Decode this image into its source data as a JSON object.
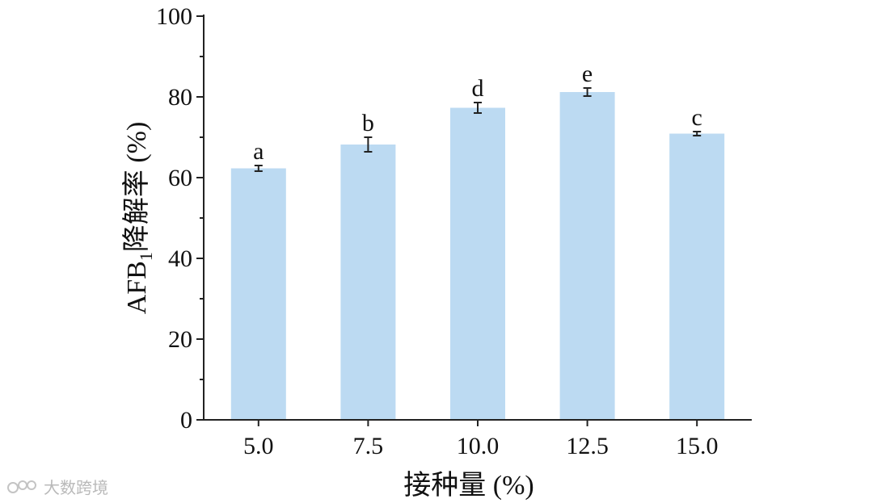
{
  "chart_data": {
    "type": "bar",
    "categories": [
      "5.0",
      "7.5",
      "10.0",
      "12.5",
      "15.0"
    ],
    "values": [
      62.3,
      68.2,
      77.3,
      81.2,
      70.9
    ],
    "errors": [
      0.7,
      1.8,
      1.3,
      1.0,
      0.5
    ],
    "significance": [
      "a",
      "b",
      "d",
      "e",
      "c"
    ],
    "xlabel": "接种量 (%)",
    "ylabel_main": "AFB",
    "ylabel_sub": "1",
    "ylabel_rest": "降解率 (%)",
    "ylim": [
      0,
      100
    ],
    "yticks": [
      "0",
      "20",
      "40",
      "60",
      "80",
      "100"
    ],
    "bar_color": "#bcdaf2",
    "grid": false
  },
  "watermark": {
    "text": "大数跨境",
    "icon": "watermark-logo-icon"
  }
}
